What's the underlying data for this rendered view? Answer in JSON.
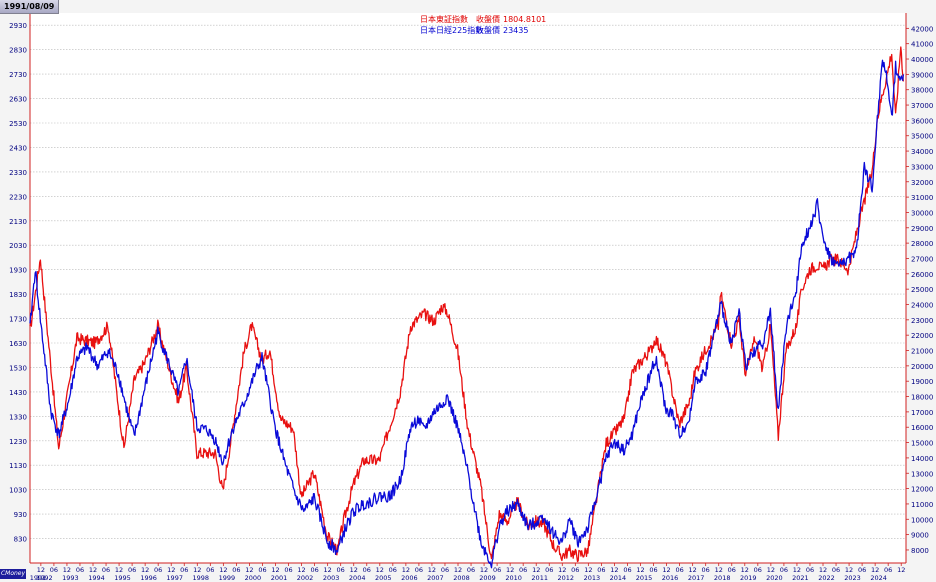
{
  "header": {
    "date": "1991/08/09",
    "brand": "CMoney"
  },
  "colors": {
    "series_1": "#e81010",
    "series_2": "#0a0ad8",
    "grid": "#b8b8b8",
    "axis": "#d02020"
  },
  "chart_data": {
    "type": "line",
    "title": "",
    "xlabel": "",
    "ylabel": "",
    "x_range": [
      "1991-06-01",
      "2024-12-31"
    ],
    "ylim_left": [
      730,
      2980
    ],
    "ylim_right": [
      7150,
      43000
    ],
    "y_ticks_left": [
      "830",
      "930",
      "1030",
      "1130",
      "1230",
      "1330",
      "1430",
      "1530",
      "1630",
      "1730",
      "1830",
      "1930",
      "2030",
      "2130",
      "2230",
      "2330",
      "2430",
      "2530",
      "2630",
      "2730",
      "2830",
      "2930"
    ],
    "y_ticks_right": [
      "8000",
      "9000",
      "10000",
      "11000",
      "12000",
      "13000",
      "14000",
      "15000",
      "16000",
      "17000",
      "18000",
      "19000",
      "20000",
      "21000",
      "22000",
      "23000",
      "24000",
      "25000",
      "26000",
      "27000",
      "28000",
      "29000",
      "30000",
      "31000",
      "32000",
      "33000",
      "34000",
      "35000",
      "36000",
      "37000",
      "38000",
      "39000",
      "40000",
      "41000",
      "42000"
    ],
    "x_years": [
      "1991",
      "1992",
      "1993",
      "1994",
      "1995",
      "1996",
      "1997",
      "1998",
      "1999",
      "2000",
      "2001",
      "2002",
      "2003",
      "2004",
      "2005",
      "2006",
      "2007",
      "2008",
      "2009",
      "2010",
      "2011",
      "2012",
      "2013",
      "2014",
      "2015",
      "2016",
      "2017",
      "2018",
      "2019",
      "2020",
      "2021",
      "2022",
      "2023",
      "2024"
    ],
    "x_month_labels": [
      "06",
      "12"
    ],
    "grid": true,
    "legend_position": "top-center",
    "series": [
      {
        "name": "日本東証指數",
        "value_label": "收盤價",
        "last_value": "1804.8101",
        "axis": "left",
        "x": [
          1991.5,
          1991.9,
          1992.6,
          1993.3,
          1994.0,
          1994.5,
          1995.1,
          1995.5,
          1995.9,
          1996.4,
          1996.9,
          1997.2,
          1997.5,
          1997.9,
          1998.6,
          1998.9,
          1999.3,
          1999.7,
          2000.0,
          2000.4,
          2000.7,
          2001.1,
          2001.6,
          2001.9,
          2002.4,
          2002.9,
          2003.3,
          2003.5,
          2003.9,
          2004.3,
          2004.6,
          2004.9,
          2005.3,
          2005.7,
          2006.1,
          2006.4,
          2006.6,
          2007.0,
          2007.3,
          2007.5,
          2007.9,
          2008.3,
          2008.8,
          2009.2,
          2009.5,
          2009.8,
          2010.2,
          2010.6,
          2010.9,
          2011.2,
          2011.6,
          2011.9,
          2012.2,
          2012.5,
          2012.9,
          2013.4,
          2013.6,
          2013.9,
          2014.3,
          2014.6,
          2014.9,
          2015.3,
          2015.5,
          2015.9,
          2016.1,
          2016.4,
          2016.8,
          2017.0,
          2017.4,
          2017.9,
          2018.0,
          2018.4,
          2018.7,
          2018.95,
          2019.3,
          2019.6,
          2019.9,
          2020.2,
          2020.5,
          2020.9,
          2021.1,
          2021.4,
          2021.7,
          2021.9,
          2022.2,
          2022.5,
          2022.9,
          2023.2,
          2023.5,
          2023.8,
          2024.0,
          2024.2,
          2024.4,
          2024.55,
          2024.7,
          2024.9,
          2025.0
        ],
        "y": [
          1680,
          1980,
          1200,
          1650,
          1630,
          1700,
          1200,
          1480,
          1550,
          1700,
          1500,
          1390,
          1530,
          1180,
          1180,
          1020,
          1300,
          1590,
          1700,
          1560,
          1600,
          1320,
          1280,
          1000,
          1100,
          840,
          780,
          890,
          1050,
          1150,
          1150,
          1150,
          1290,
          1430,
          1700,
          1730,
          1750,
          1720,
          1780,
          1760,
          1600,
          1280,
          1040,
          740,
          930,
          900,
          980,
          880,
          900,
          890,
          800,
          760,
          780,
          760,
          780,
          1100,
          1220,
          1260,
          1320,
          1510,
          1550,
          1600,
          1650,
          1550,
          1450,
          1300,
          1390,
          1510,
          1600,
          1700,
          1830,
          1630,
          1720,
          1500,
          1650,
          1520,
          1700,
          1250,
          1600,
          1700,
          1850,
          1930,
          1950,
          1930,
          1970,
          1970,
          1930,
          2080,
          2210,
          2330,
          2550,
          2650,
          2740,
          2820,
          2550,
          2850,
          2700
        ]
      },
      {
        "name": "日本日經225指數",
        "value_label": "收盤價",
        "last_value": "23435",
        "axis": "right",
        "x": [
          1991.5,
          1991.7,
          1991.9,
          1992.3,
          1992.6,
          1993.0,
          1993.3,
          1993.7,
          1994.1,
          1994.5,
          1994.9,
          1995.3,
          1995.5,
          1995.9,
          1996.4,
          1996.9,
          1997.2,
          1997.5,
          1997.9,
          1998.3,
          1998.6,
          1998.9,
          1999.3,
          1999.7,
          2000.2,
          2000.4,
          2000.9,
          2001.3,
          2001.7,
          2002.0,
          2002.4,
          2002.9,
          2003.3,
          2003.5,
          2003.9,
          2004.3,
          2004.6,
          2004.9,
          2005.3,
          2005.7,
          2006.1,
          2006.4,
          2006.6,
          2007.0,
          2007.3,
          2007.5,
          2007.9,
          2008.3,
          2008.8,
          2009.2,
          2009.5,
          2009.8,
          2010.2,
          2010.6,
          2010.9,
          2011.2,
          2011.6,
          2011.9,
          2012.2,
          2012.5,
          2012.9,
          2013.3,
          2013.6,
          2013.9,
          2014.3,
          2014.6,
          2014.9,
          2015.3,
          2015.5,
          2015.9,
          2016.1,
          2016.4,
          2016.8,
          2017.0,
          2017.4,
          2017.8,
          2018.0,
          2018.4,
          2018.7,
          2018.95,
          2019.3,
          2019.6,
          2019.9,
          2020.2,
          2020.5,
          2020.9,
          2021.1,
          2021.4,
          2021.7,
          2021.9,
          2022.2,
          2022.5,
          2022.9,
          2023.2,
          2023.5,
          2023.8,
          2024.0,
          2024.2,
          2024.4,
          2024.55,
          2024.7,
          2024.9,
          2025.0
        ],
        "y": [
          22500,
          26300,
          23000,
          17000,
          15500,
          17800,
          20500,
          21200,
          20000,
          21000,
          19400,
          16500,
          15400,
          18500,
          22200,
          19800,
          18200,
          20500,
          16000,
          15800,
          15200,
          13700,
          16000,
          17500,
          19800,
          20500,
          16000,
          13500,
          11500,
          10500,
          11400,
          8600,
          7900,
          9000,
          10500,
          11000,
          11200,
          11500,
          11500,
          12500,
          16000,
          16500,
          15800,
          17000,
          17500,
          18000,
          16000,
          13000,
          8500,
          7100,
          9500,
          10500,
          11000,
          9500,
          9800,
          10200,
          9000,
          8500,
          10000,
          8500,
          9400,
          12000,
          14000,
          15000,
          14500,
          15500,
          17500,
          19500,
          20500,
          17000,
          17000,
          15500,
          16500,
          19000,
          19500,
          22500,
          24000,
          21500,
          23500,
          20000,
          21000,
          21500,
          23500,
          17000,
          22500,
          25000,
          28000,
          29000,
          30500,
          28500,
          27000,
          26500,
          27000,
          27500,
          33000,
          31500,
          36000,
          40000,
          38500,
          36000,
          39500,
          38500,
          39000
        ]
      }
    ]
  }
}
